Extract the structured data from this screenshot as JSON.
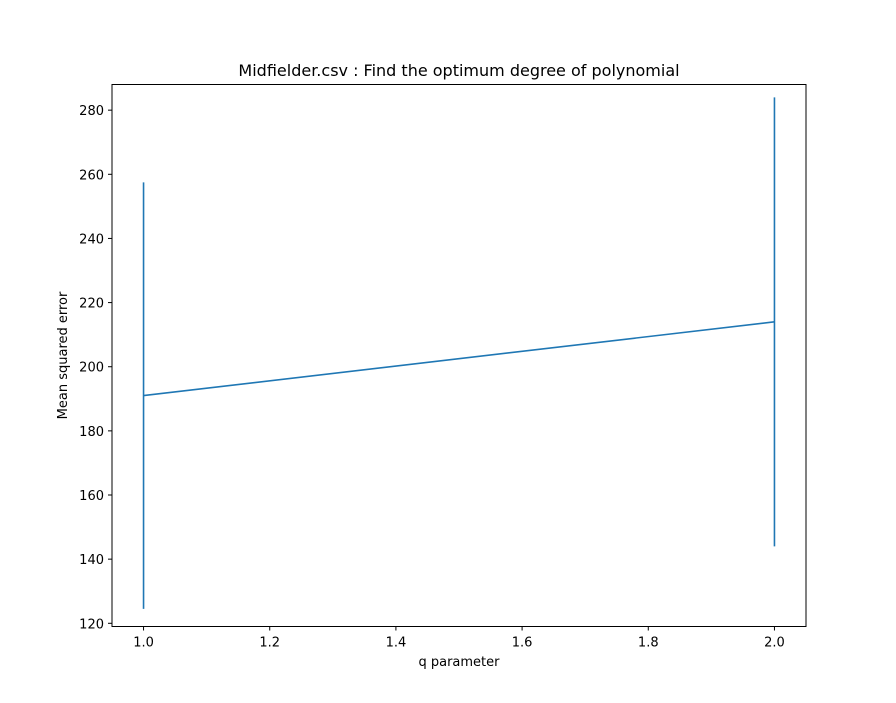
{
  "chart_data": {
    "type": "line",
    "title": "Midfielder.csv : Find the optimum degree of polynomial",
    "xlabel": "q parameter",
    "ylabel": "Mean squared error",
    "xlim": [
      0.95,
      2.05
    ],
    "ylim": [
      119,
      288
    ],
    "xticks": [
      1.0,
      1.2,
      1.4,
      1.6,
      1.8,
      2.0
    ],
    "xtick_labels": [
      "1.0",
      "1.2",
      "1.4",
      "1.6",
      "1.8",
      "2.0"
    ],
    "yticks": [
      120,
      140,
      160,
      180,
      200,
      220,
      240,
      260,
      280
    ],
    "ytick_labels": [
      "120",
      "140",
      "160",
      "180",
      "200",
      "220",
      "240",
      "260",
      "280"
    ],
    "grid": false,
    "series": [
      {
        "color": "#1f77b4",
        "x": [
          1.0,
          2.0
        ],
        "y": [
          191,
          214
        ],
        "yerr_low": [
          124.5,
          144
        ],
        "yerr_high": [
          257.5,
          284
        ]
      }
    ]
  }
}
